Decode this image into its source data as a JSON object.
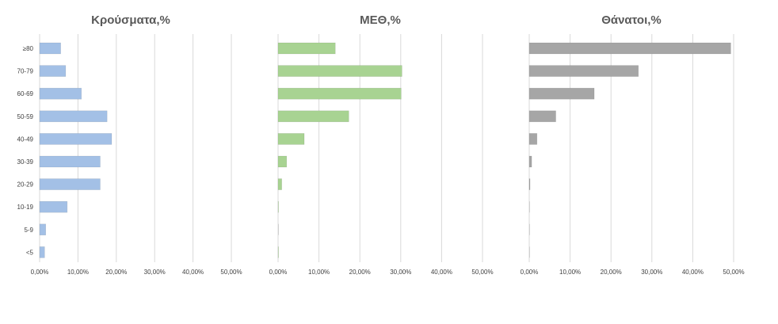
{
  "chart_data": [
    {
      "type": "bar",
      "orientation": "horizontal",
      "title": "Κρούσματα,%",
      "categories": [
        "≥80",
        "70-79",
        "60-69",
        "50-59",
        "40-49",
        "30-39",
        "20-29",
        "10-19",
        "5-9",
        "<5"
      ],
      "values": [
        5.5,
        6.8,
        10.9,
        17.6,
        18.8,
        15.8,
        15.8,
        7.2,
        1.6,
        1.3
      ],
      "xlim": [
        0,
        50
      ],
      "xticks": [
        "0,00%",
        "10,00%",
        "20,00%",
        "30,00%",
        "40,00%",
        "50,00%"
      ],
      "color": "#a3c0e6",
      "grid": true
    },
    {
      "type": "bar",
      "orientation": "horizontal",
      "title": "ΜΕΘ,%",
      "categories": [
        "≥80",
        "70-79",
        "60-69",
        "50-59",
        "40-49",
        "30-39",
        "20-29",
        "10-19",
        "5-9",
        "<5"
      ],
      "values": [
        14.0,
        30.3,
        30.1,
        17.3,
        6.4,
        2.1,
        0.9,
        0.1,
        0.0,
        0.1
      ],
      "xlim": [
        0,
        50
      ],
      "xticks": [
        "0,00%",
        "10,00%",
        "20,00%",
        "30,00%",
        "40,00%",
        "50,00%"
      ],
      "color": "#a8d392",
      "grid": true
    },
    {
      "type": "bar",
      "orientation": "horizontal",
      "title": "Θάνατοι,%",
      "categories": [
        "≥80",
        "70-79",
        "60-69",
        "50-59",
        "40-49",
        "30-39",
        "20-29",
        "10-19",
        "5-9",
        "<5"
      ],
      "values": [
        49.3,
        26.7,
        15.9,
        6.5,
        1.9,
        0.6,
        0.2,
        0.0,
        0.0,
        0.0
      ],
      "xlim": [
        0,
        50
      ],
      "xticks": [
        "0,00%",
        "10,00%",
        "20,00%",
        "30,00%",
        "40,00%",
        "50,00%"
      ],
      "color": "#a6a6a6",
      "grid": true
    }
  ]
}
